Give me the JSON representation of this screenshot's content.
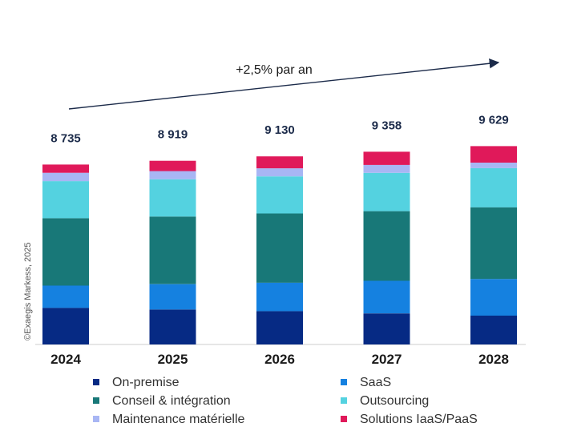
{
  "chart_data": {
    "type": "bar",
    "stacked": true,
    "categories": [
      "2024",
      "2025",
      "2026",
      "2027",
      "2028"
    ],
    "totals": [
      "8 735",
      "8 919",
      "9 130",
      "9 358",
      "9 629"
    ],
    "growth_annotation": "+2,5% par an",
    "copyright": "©Exaegis Markess, 2025",
    "ylim": [
      0,
      10500
    ],
    "legend_position": "bottom",
    "series": [
      {
        "name": "On-premise",
        "color": "#062a84",
        "values": [
          1780,
          1700,
          1620,
          1510,
          1400
        ]
      },
      {
        "name": "SaaS",
        "color": "#1581e0",
        "values": [
          1080,
          1230,
          1380,
          1580,
          1780
        ]
      },
      {
        "name": "Conseil & intégration",
        "color": "#187878",
        "values": [
          3270,
          3280,
          3360,
          3380,
          3480
        ]
      },
      {
        "name": "Outsourcing",
        "color": "#54d2e0",
        "values": [
          1800,
          1810,
          1800,
          1860,
          1900
        ]
      },
      {
        "name": "Maintenance matérielle",
        "color": "#a8b6f4",
        "values": [
          405,
          399,
          390,
          388,
          269
        ]
      },
      {
        "name": "Solutions IaaS/PaaS",
        "color": "#e0195a",
        "values": [
          400,
          500,
          580,
          640,
          800
        ]
      }
    ]
  }
}
